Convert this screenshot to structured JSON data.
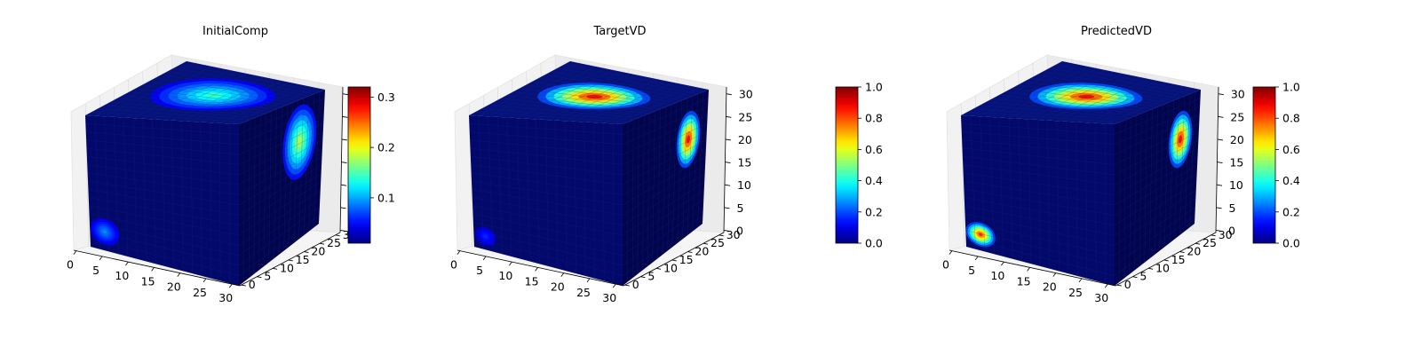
{
  "figure": {
    "colormap": "jet",
    "background": "#ffffff"
  },
  "chart_data": [
    {
      "type": "heatmap",
      "title": "InitialComp",
      "x_ticks": [
        "0",
        "5",
        "10",
        "15",
        "20",
        "25",
        "30"
      ],
      "y_ticks": [
        "0",
        "5",
        "10",
        "15",
        "20",
        "25",
        "30"
      ],
      "z_ticks": [],
      "xlim": [
        0,
        32
      ],
      "ylim": [
        0,
        32
      ],
      "zlim": [
        0,
        32
      ],
      "colorbar": {
        "ticks": [
          "0.1",
          "0.2",
          "0.3"
        ],
        "values": [
          0.1,
          0.2,
          0.3
        ],
        "range": [
          0.01,
          0.32
        ]
      },
      "blobs": [
        {
          "face": "top",
          "u": 0.55,
          "v": 0.5,
          "ru": 0.32,
          "rv": 0.38,
          "value": 0.16
        },
        {
          "face": "right",
          "u": 0.72,
          "v": 0.3,
          "ru": 0.2,
          "rv": 0.26,
          "value": 0.2
        },
        {
          "face": "front",
          "u": 0.1,
          "v": 0.86,
          "ru": 0.1,
          "rv": 0.1,
          "value": 0.1
        }
      ]
    },
    {
      "type": "heatmap",
      "title": "TargetVD",
      "x_ticks": [
        "0",
        "5",
        "10",
        "15",
        "20",
        "25",
        "30"
      ],
      "y_ticks": [
        "0",
        "5",
        "10",
        "15",
        "20",
        "25",
        "30"
      ],
      "z_ticks": [
        "0",
        "5",
        "10",
        "15",
        "20",
        "25",
        "30"
      ],
      "xlim": [
        0,
        32
      ],
      "ylim": [
        0,
        32
      ],
      "zlim": [
        0,
        32
      ],
      "colorbar": {
        "ticks": [
          "0.0",
          "0.2",
          "0.4",
          "0.6",
          "0.8",
          "1.0"
        ],
        "values": [
          0,
          0.2,
          0.4,
          0.6,
          0.8,
          1.0
        ],
        "range": [
          0,
          1
        ]
      },
      "blobs": [
        {
          "face": "top",
          "u": 0.52,
          "v": 0.5,
          "ru": 0.26,
          "rv": 0.35,
          "value": 1.0
        },
        {
          "face": "right",
          "u": 0.78,
          "v": 0.3,
          "ru": 0.14,
          "rv": 0.2,
          "value": 1.0
        },
        {
          "face": "front",
          "u": 0.08,
          "v": 0.9,
          "ru": 0.07,
          "rv": 0.07,
          "value": 0.18
        }
      ]
    },
    {
      "type": "heatmap",
      "title": "PredictedVD",
      "x_ticks": [
        "0",
        "5",
        "10",
        "15",
        "20",
        "25",
        "30"
      ],
      "y_ticks": [
        "0",
        "5",
        "10",
        "15",
        "20",
        "25",
        "30"
      ],
      "z_ticks": [
        "0",
        "5",
        "10",
        "15",
        "20",
        "25",
        "30"
      ],
      "xlim": [
        0,
        32
      ],
      "ylim": [
        0,
        32
      ],
      "zlim": [
        0,
        32
      ],
      "colorbar": {
        "ticks": [
          "0.0",
          "0.2",
          "0.4",
          "0.6",
          "0.8",
          "1.0"
        ],
        "values": [
          0,
          0.2,
          0.4,
          0.6,
          0.8,
          1.0
        ],
        "range": [
          0,
          1
        ]
      },
      "blobs": [
        {
          "face": "top",
          "u": 0.52,
          "v": 0.5,
          "ru": 0.26,
          "rv": 0.35,
          "value": 1.0
        },
        {
          "face": "right",
          "u": 0.78,
          "v": 0.3,
          "ru": 0.14,
          "rv": 0.2,
          "value": 1.0
        },
        {
          "face": "front",
          "u": 0.1,
          "v": 0.88,
          "ru": 0.1,
          "rv": 0.09,
          "value": 0.95
        }
      ]
    }
  ]
}
